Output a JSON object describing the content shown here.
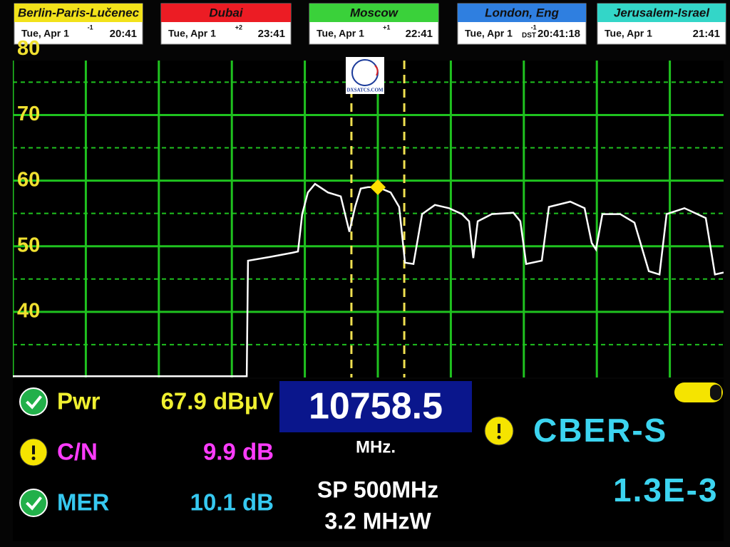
{
  "clocks": [
    {
      "city": "Berlin-Paris-Lučenec",
      "date": "Tue, Apr 1",
      "offset": "-1",
      "time": "20:41",
      "color": "#f2e21a"
    },
    {
      "city": "Dubai",
      "date": "Tue, Apr 1",
      "offset": "+2",
      "time": "23:41",
      "color": "#ec1c24"
    },
    {
      "city": "Moscow",
      "date": "Tue, Apr 1",
      "offset": "+1",
      "time": "22:41",
      "color": "#3ad13a"
    },
    {
      "city": "London, Eng",
      "date": "Tue, Apr 1",
      "offset": "-1",
      "dst": "DST",
      "time": "20:41:18",
      "color": "#2f7fe0"
    },
    {
      "city": "Jerusalem-Israel",
      "date": "Tue, Apr 1",
      "time": "21:41",
      "color": "#33d6c8"
    }
  ],
  "logo": "DXSATCS.COM",
  "chart_data": {
    "type": "line",
    "color": "#ffffff",
    "x": [
      10508.5,
      10668.7,
      10669.6,
      10685.3,
      10699.9,
      10703.8,
      10706.7,
      10710.6,
      10715.5,
      10724.3,
      10733.1,
      10739.0,
      10742.9,
      10746.8,
      10751.7,
      10758.5,
      10767.3,
      10773.1,
      10777.1,
      10782.9,
      10788.8,
      10797.6,
      10807.3,
      10816.1,
      10821.0,
      10823.9,
      10826.9,
      10836.6,
      10851.3,
      10856.1,
      10860.1,
      10870.8,
      10875.7,
      10890.3,
      10900.1,
      10905.0,
      10907.9,
      10912.3,
      10924.5,
      10934.3,
      10944.1,
      10951.4,
      10956.3,
      10968.5,
      10983.1,
      10989.4,
      10995.3
    ],
    "values": [
      30.2,
      30.2,
      47.8,
      48.4,
      49.0,
      49.2,
      54.9,
      58.2,
      59.5,
      58.2,
      57.6,
      52.2,
      56.0,
      58.8,
      59.0,
      59.0,
      58.2,
      56.0,
      47.5,
      47.3,
      54.9,
      56.3,
      55.8,
      54.9,
      53.8,
      48.2,
      53.8,
      54.9,
      55.1,
      53.8,
      47.3,
      47.8,
      56.0,
      56.8,
      55.8,
      50.5,
      49.5,
      54.9,
      54.9,
      53.6,
      46.2,
      45.7,
      54.9,
      55.8,
      54.3,
      45.7,
      46.0
    ],
    "xlim": [
      10508.5,
      11008.5
    ],
    "ylim": [
      30,
      78.3
    ],
    "yticks": [
      40,
      50,
      60,
      70,
      80
    ],
    "minor_grid": [
      35,
      45,
      55,
      65,
      75
    ],
    "grid_color": "#1fc21f",
    "tick_color": "#f0e030",
    "marker": {
      "x": 10758.5,
      "y": 59.0
    },
    "marker_color": "#ffe000",
    "cursors": [
      10740.4,
      10776.6
    ],
    "cursor_color": "#f0e050"
  },
  "measurements": [
    {
      "icon": "ok",
      "label": "Pwr",
      "value": "67.9 dBµV",
      "color": "#f0f030"
    },
    {
      "icon": "warn",
      "label": "C/N",
      "value": "9.9 dB",
      "color": "#ff3cff"
    },
    {
      "icon": "ok",
      "label": "MER",
      "value": "10.1 dB",
      "color": "#36c8f0"
    }
  ],
  "frequency": "10758.5",
  "unit": "MHz.",
  "span": "SP 500MHz",
  "bandwidth": "3.2 MHzW",
  "status": {
    "icon": "warn",
    "label": "CBER-S",
    "value": "1.3E-3",
    "color": "#3cd4f0"
  }
}
